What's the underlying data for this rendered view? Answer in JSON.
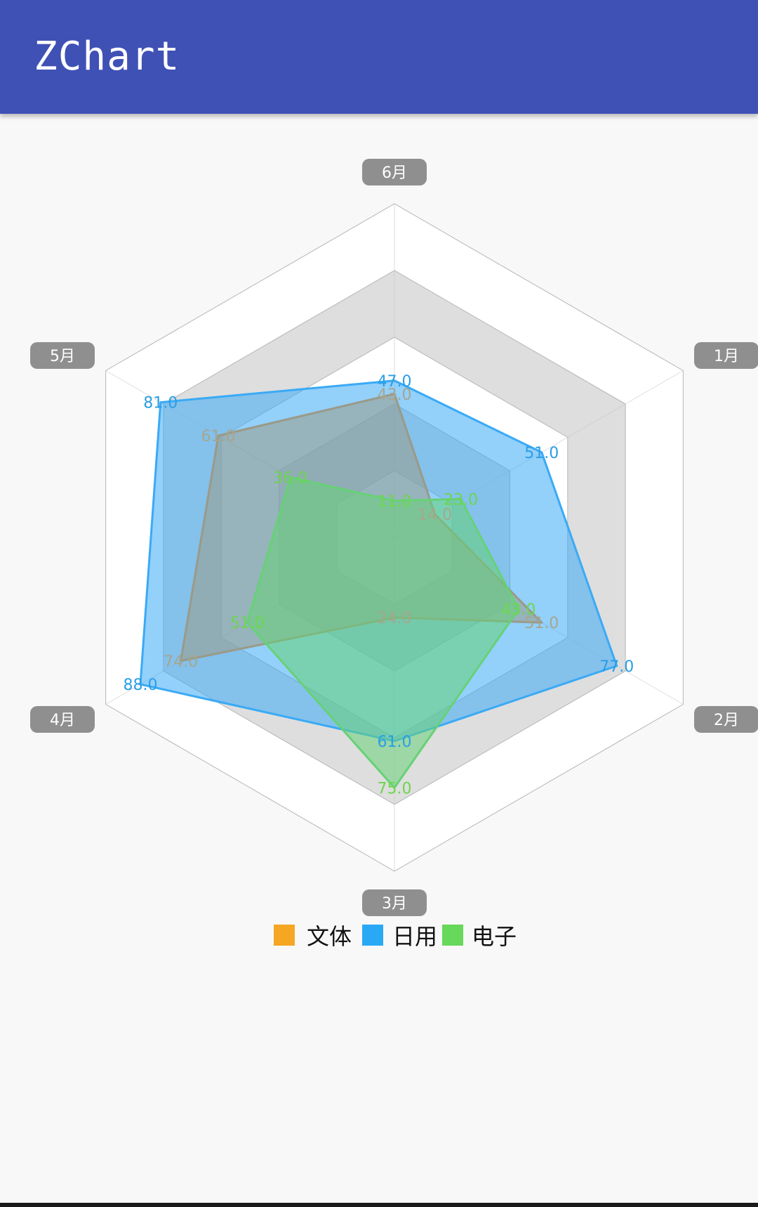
{
  "app": {
    "title": "ZChart"
  },
  "chart_data": {
    "type": "radar",
    "categories": [
      "1月",
      "2月",
      "3月",
      "4月",
      "5月",
      "6月"
    ],
    "rmax": 100,
    "rings": 5,
    "series": [
      {
        "name": "文体",
        "color": "#f5a623",
        "values": [
          14,
          51,
          24,
          74,
          61,
          43
        ]
      },
      {
        "name": "日用",
        "color": "#29a9f5",
        "values": [
          51,
          77,
          61,
          88,
          81,
          47
        ]
      },
      {
        "name": "电子",
        "color": "#66d85a",
        "values": [
          23,
          43,
          75,
          51,
          36,
          11
        ]
      }
    ],
    "value_labels": {
      "文体": [
        "14.0",
        "51.0",
        "24.0",
        "74.0",
        "61.0",
        "43.0"
      ],
      "日用": [
        "51.0",
        "77.0",
        "61.0",
        "88.0",
        "81.0",
        "47.0"
      ],
      "电子": [
        "23.0",
        "43.0",
        "75.0",
        "51.0",
        "36.0",
        "11.0"
      ]
    },
    "fill_colors": {
      "文体": "#9a9a88",
      "日用": "#3aaaf5",
      "电子": "#66d276"
    },
    "label_colors": {
      "文体": "#a6a68e",
      "日用": "#2a9ee6",
      "电子": "#6cd64e"
    },
    "legend_position": "bottom"
  }
}
